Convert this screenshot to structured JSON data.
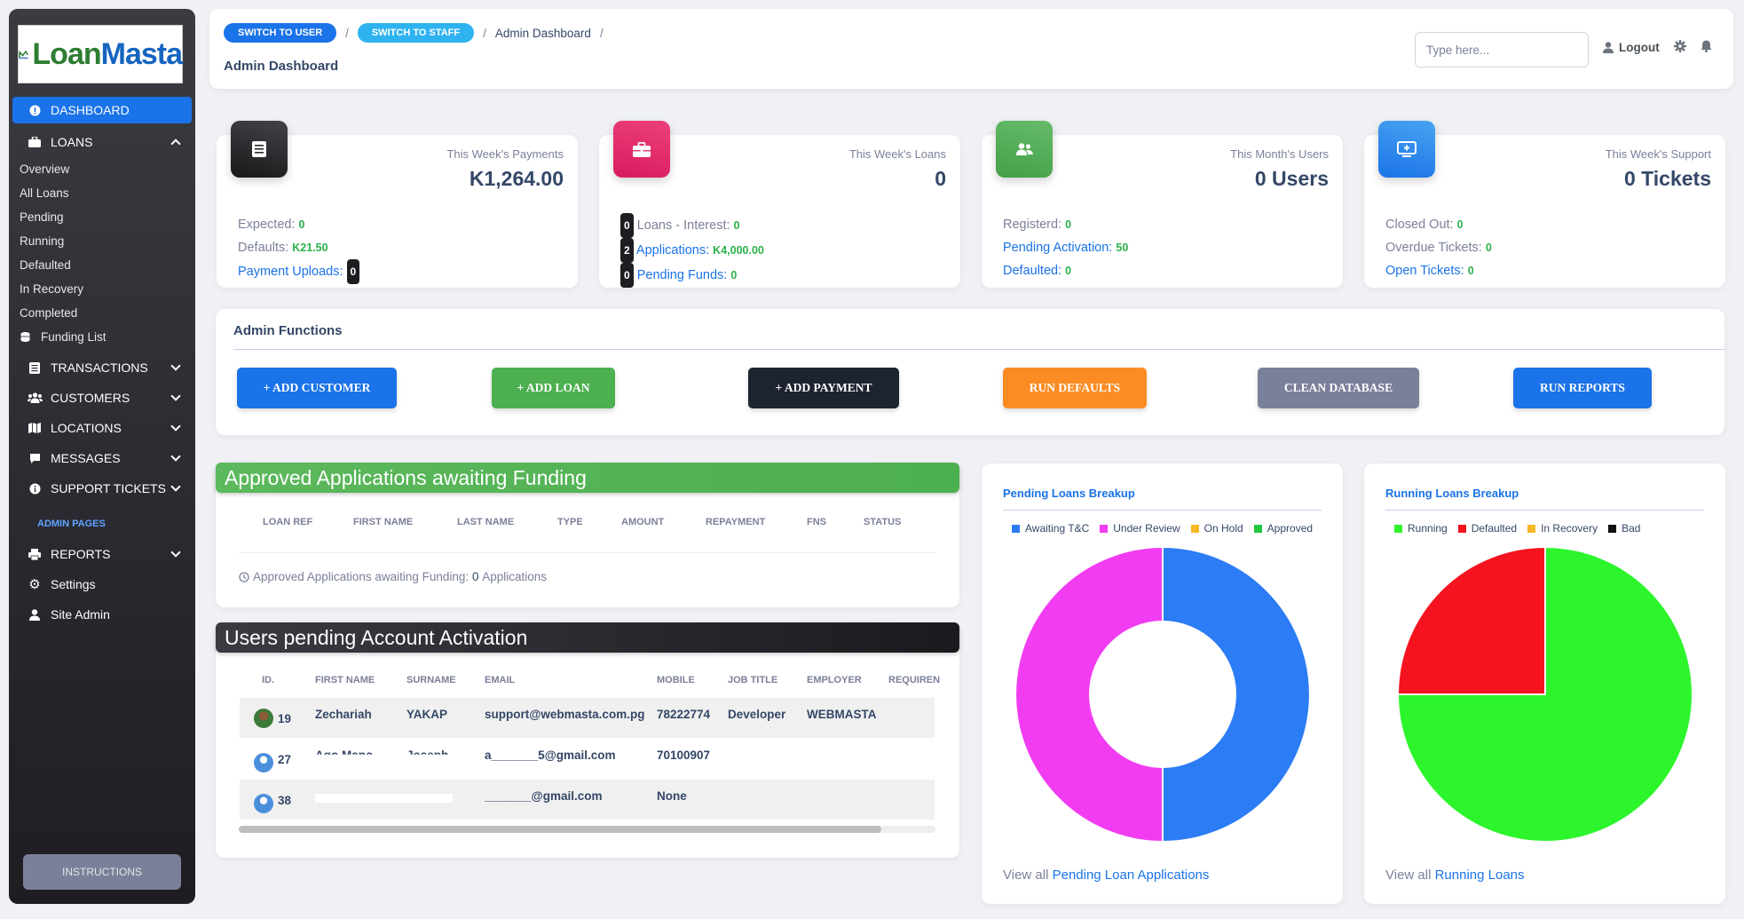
{
  "brand": {
    "name_part1": "Loan",
    "name_part2": "Masta"
  },
  "sidebar": {
    "dashboard": "DASHBOARD",
    "loans": "LOANS",
    "loan_items": [
      "Overview",
      "All Loans",
      "Pending",
      "Running",
      "Defaulted",
      "In Recovery",
      "Completed"
    ],
    "funding_list": "Funding List",
    "transactions": "TRANSACTIONS",
    "customers": "CUSTOMERS",
    "locations": "LOCATIONS",
    "messages": "MESSAGES",
    "support_tickets": "SUPPORT TICKETS",
    "admin_pages": "ADMIN PAGES",
    "reports": "REPORTS",
    "settings": "Settings",
    "site_admin": "Site Admin",
    "instructions": "INSTRUCTIONS"
  },
  "topbar": {
    "switch_user": "SWITCH TO USER",
    "switch_staff": "SWITCH TO STAFF",
    "breadcrumb_current": "Admin Dashboard",
    "breadcrumb_sep": "/",
    "page_title": "Admin Dashboard",
    "search_placeholder": "Type here...",
    "logout": "Logout"
  },
  "stats": {
    "payments": {
      "label": "This Week's Payments",
      "value": "K1,264.00",
      "expected_label": "Expected:",
      "expected": "0",
      "defaults_label": "Defaults:",
      "defaults": "K21.50",
      "uploads_label": "Payment Uploads:",
      "uploads": "0"
    },
    "loans": {
      "label": "This Week's Loans",
      "value": "0",
      "l1_count": "0",
      "l1_label": "Loans - Interest:",
      "l1_value": "0",
      "l2_count": "2",
      "l2_label": "Applications:",
      "l2_value": "K4,000.00",
      "l3_count": "0",
      "l3_label": "Pending Funds:",
      "l3_value": "0"
    },
    "users": {
      "label": "This Month's Users",
      "value": "0 Users",
      "registered_label": "Registerd:",
      "registered": "0",
      "pending_label": "Pending Activation:",
      "pending": "50",
      "defaulted_label": "Defaulted:",
      "defaulted": "0"
    },
    "support": {
      "label": "This Week's Support",
      "value": "0 Tickets",
      "closed_label": "Closed Out:",
      "closed": "0",
      "overdue_label": "Overdue Tickets:",
      "overdue": "0",
      "open_label": "Open Tickets:",
      "open": "0"
    }
  },
  "admin_functions": {
    "title": "Admin Functions",
    "add_customer": "+ ADD CUSTOMER",
    "add_loan": "+ ADD LOAN",
    "add_payment": "+ ADD PAYMENT",
    "run_defaults": "RUN DEFAULTS",
    "clean_database": "CLEAN DATABASE",
    "run_reports": "RUN REPORTS"
  },
  "approved": {
    "title": "Approved Applications awaiting Funding",
    "columns": [
      "LOAN REF",
      "FIRST NAME",
      "LAST NAME",
      "TYPE",
      "AMOUNT",
      "REPAYMENT",
      "FNS",
      "STATUS"
    ],
    "footer_label": "Approved Applications awaiting Funding:",
    "footer_count": "0",
    "footer_unit": "Applications"
  },
  "pending_users": {
    "title": "Users pending Account Activation",
    "columns": [
      "ID.",
      "FIRST NAME",
      "SURNAME",
      "EMAIL",
      "MOBILE",
      "JOB TITLE",
      "EMPLOYER",
      "REQUIREN"
    ],
    "rows": [
      {
        "id": "19",
        "first": "Zechariah",
        "surname": "YAKAP",
        "email": "support@webmasta.com.pg",
        "mobile": "78222774",
        "job": "Developer",
        "employer": "WEBMASTA"
      },
      {
        "id": "27",
        "first": "Ago Mano",
        "surname": "Joseph",
        "email": "a_______5@gmail.com",
        "mobile": "70100907",
        "job": "",
        "employer": ""
      },
      {
        "id": "38",
        "first": "",
        "surname": "",
        "email": "_______@gmail.com",
        "mobile": "None",
        "job": "",
        "employer": ""
      }
    ]
  },
  "pending_chart": {
    "title": "Pending Loans Breakup",
    "view_all_prefix": "View all",
    "view_all_link": "Pending Loan Applications"
  },
  "running_chart": {
    "title": "Running Loans Breakup",
    "view_all_prefix": "View all",
    "view_all_link": "Running Loans"
  },
  "chart_data": [
    {
      "type": "pie",
      "title": "Pending Loans Breakup",
      "donut": true,
      "legend_position": "top",
      "categories": [
        "Awaiting T&C",
        "Under Review",
        "On Hold",
        "Approved"
      ],
      "values": [
        50,
        50,
        0,
        0
      ],
      "colors": [
        "#2b7cf5",
        "#f23cf2",
        "#f7b928",
        "#21c93f"
      ]
    },
    {
      "type": "pie",
      "title": "Running Loans Breakup",
      "donut": false,
      "legend_position": "top",
      "categories": [
        "Running",
        "Defaulted",
        "In Recovery",
        "Bad"
      ],
      "values": [
        75,
        25,
        0,
        0
      ],
      "colors": [
        "#2cf52c",
        "#f5131f",
        "#f7b928",
        "#111111"
      ]
    }
  ]
}
